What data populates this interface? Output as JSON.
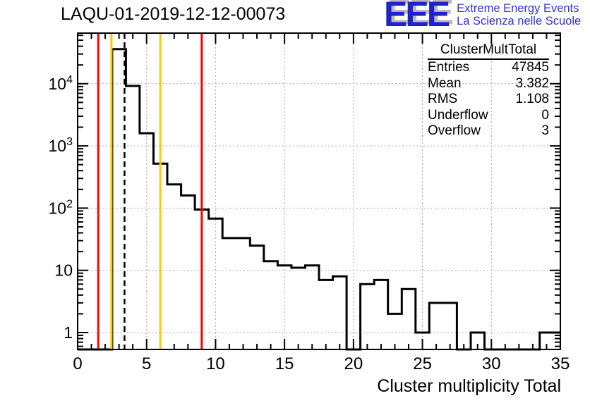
{
  "title": "LAQU-01-2019-12-12-00073",
  "logo": {
    "letters": "EEE",
    "line1": "Extreme Energy Events",
    "line2": "La Scienza nelle Scuole"
  },
  "stats": {
    "title": "ClusterMultTotal",
    "rows": [
      {
        "label": "Entries",
        "value": "47845"
      },
      {
        "label": "Mean",
        "value": "3.382"
      },
      {
        "label": "RMS",
        "value": "1.108"
      },
      {
        "label": "Underflow",
        "value": "0"
      },
      {
        "label": "Overflow",
        "value": "3"
      }
    ]
  },
  "colors": {
    "histogram": "#000000",
    "grid": "#aaaaaa",
    "frame": "#000000",
    "red_marker": "#ff0000",
    "yellow_marker": "#ffc800",
    "mean_marker": "#000000",
    "logo_blue": "#2222cc",
    "logo_text_blue": "#3333cc",
    "logo_shadow": "#b9b9b9"
  },
  "chart_data": {
    "type": "line",
    "style": "root-step-histogram",
    "title": "LAQU-01-2019-12-12-00073",
    "xlabel": "Cluster multiplicity Total",
    "ylabel": "",
    "y_scale": "log",
    "x_range": [
      0,
      35
    ],
    "y_range": [
      0.5,
      68000
    ],
    "grid": "dotted",
    "bin_width": 1,
    "bin_centers": [
      0,
      1,
      2,
      3,
      4,
      5,
      6,
      7,
      8,
      9,
      10,
      11,
      12,
      13,
      14,
      15,
      16,
      17,
      18,
      19,
      20,
      21,
      22,
      23,
      24,
      25,
      26,
      27,
      28,
      29,
      30,
      31,
      32,
      33,
      34,
      35
    ],
    "counts": [
      0,
      0,
      0,
      36000,
      9200,
      1600,
      520,
      240,
      160,
      95,
      68,
      33,
      33,
      25,
      14,
      12,
      11,
      12,
      7,
      8,
      0,
      6,
      7,
      2,
      5,
      1,
      3,
      3,
      0,
      1,
      0,
      0,
      0,
      0,
      1,
      1
    ],
    "x_ticks": [
      0,
      5,
      10,
      15,
      20,
      25,
      30,
      35
    ],
    "y_ticks": [
      "1",
      "10",
      "10^2",
      "10^3",
      "10^4"
    ],
    "marker_lines": [
      {
        "name": "red-low-line",
        "x": 1.5,
        "color": "#ff0000",
        "style": "solid"
      },
      {
        "name": "yellow-low-line",
        "x": 2.45,
        "color": "#ffc800",
        "style": "solid"
      },
      {
        "name": "mean-line",
        "x": 3.4,
        "color": "#000000",
        "style": "dashed"
      },
      {
        "name": "yellow-high-line",
        "x": 6.0,
        "color": "#ffc800",
        "style": "solid"
      },
      {
        "name": "red-high-line",
        "x": 9.0,
        "color": "#ff0000",
        "style": "solid"
      }
    ]
  }
}
